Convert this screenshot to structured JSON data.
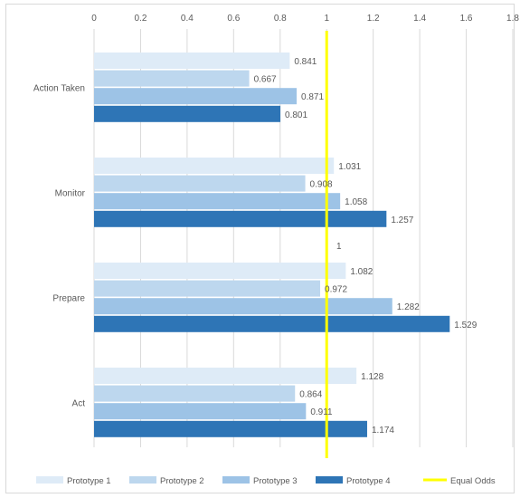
{
  "chart_data": {
    "type": "bar",
    "orientation": "horizontal",
    "title": "",
    "xlabel": "",
    "ylabel": "",
    "xlim": [
      0,
      1.8
    ],
    "x_ticks": [
      "0",
      "0.2",
      "0.4",
      "0.6",
      "0.8",
      "1",
      "1.2",
      "1.4",
      "1.6",
      "1.8"
    ],
    "x_axis_position": "top",
    "grid": true,
    "legend_position": "bottom",
    "categories": [
      "Action Taken",
      "Monitor",
      "Prepare",
      "Act"
    ],
    "series": [
      {
        "name": "Prototype 1",
        "color": "#deebf7",
        "values": [
          0.841,
          1.031,
          1.082,
          1.128
        ],
        "labels": [
          "0.841",
          "1.031",
          "1.082",
          "1.128"
        ]
      },
      {
        "name": "Prototype 2",
        "color": "#bdd7ee",
        "values": [
          0.667,
          0.908,
          0.972,
          0.864
        ],
        "labels": [
          "0.667",
          "0.908",
          "0.972",
          "0.864"
        ]
      },
      {
        "name": "Prototype 3",
        "color": "#9dc3e6",
        "values": [
          0.871,
          1.058,
          1.282,
          0.911
        ],
        "labels": [
          "0.871",
          "1.058",
          "1.282",
          "0.911"
        ]
      },
      {
        "name": "Prototype 4",
        "color": "#2e75b6",
        "values": [
          0.801,
          1.257,
          1.529,
          1.174
        ],
        "labels": [
          "0.801",
          "1.257",
          "1.529",
          "1.174"
        ]
      }
    ],
    "reference_line": {
      "name": "Equal Odds",
      "value": 1,
      "label": "1",
      "color": "#ffff00"
    }
  }
}
